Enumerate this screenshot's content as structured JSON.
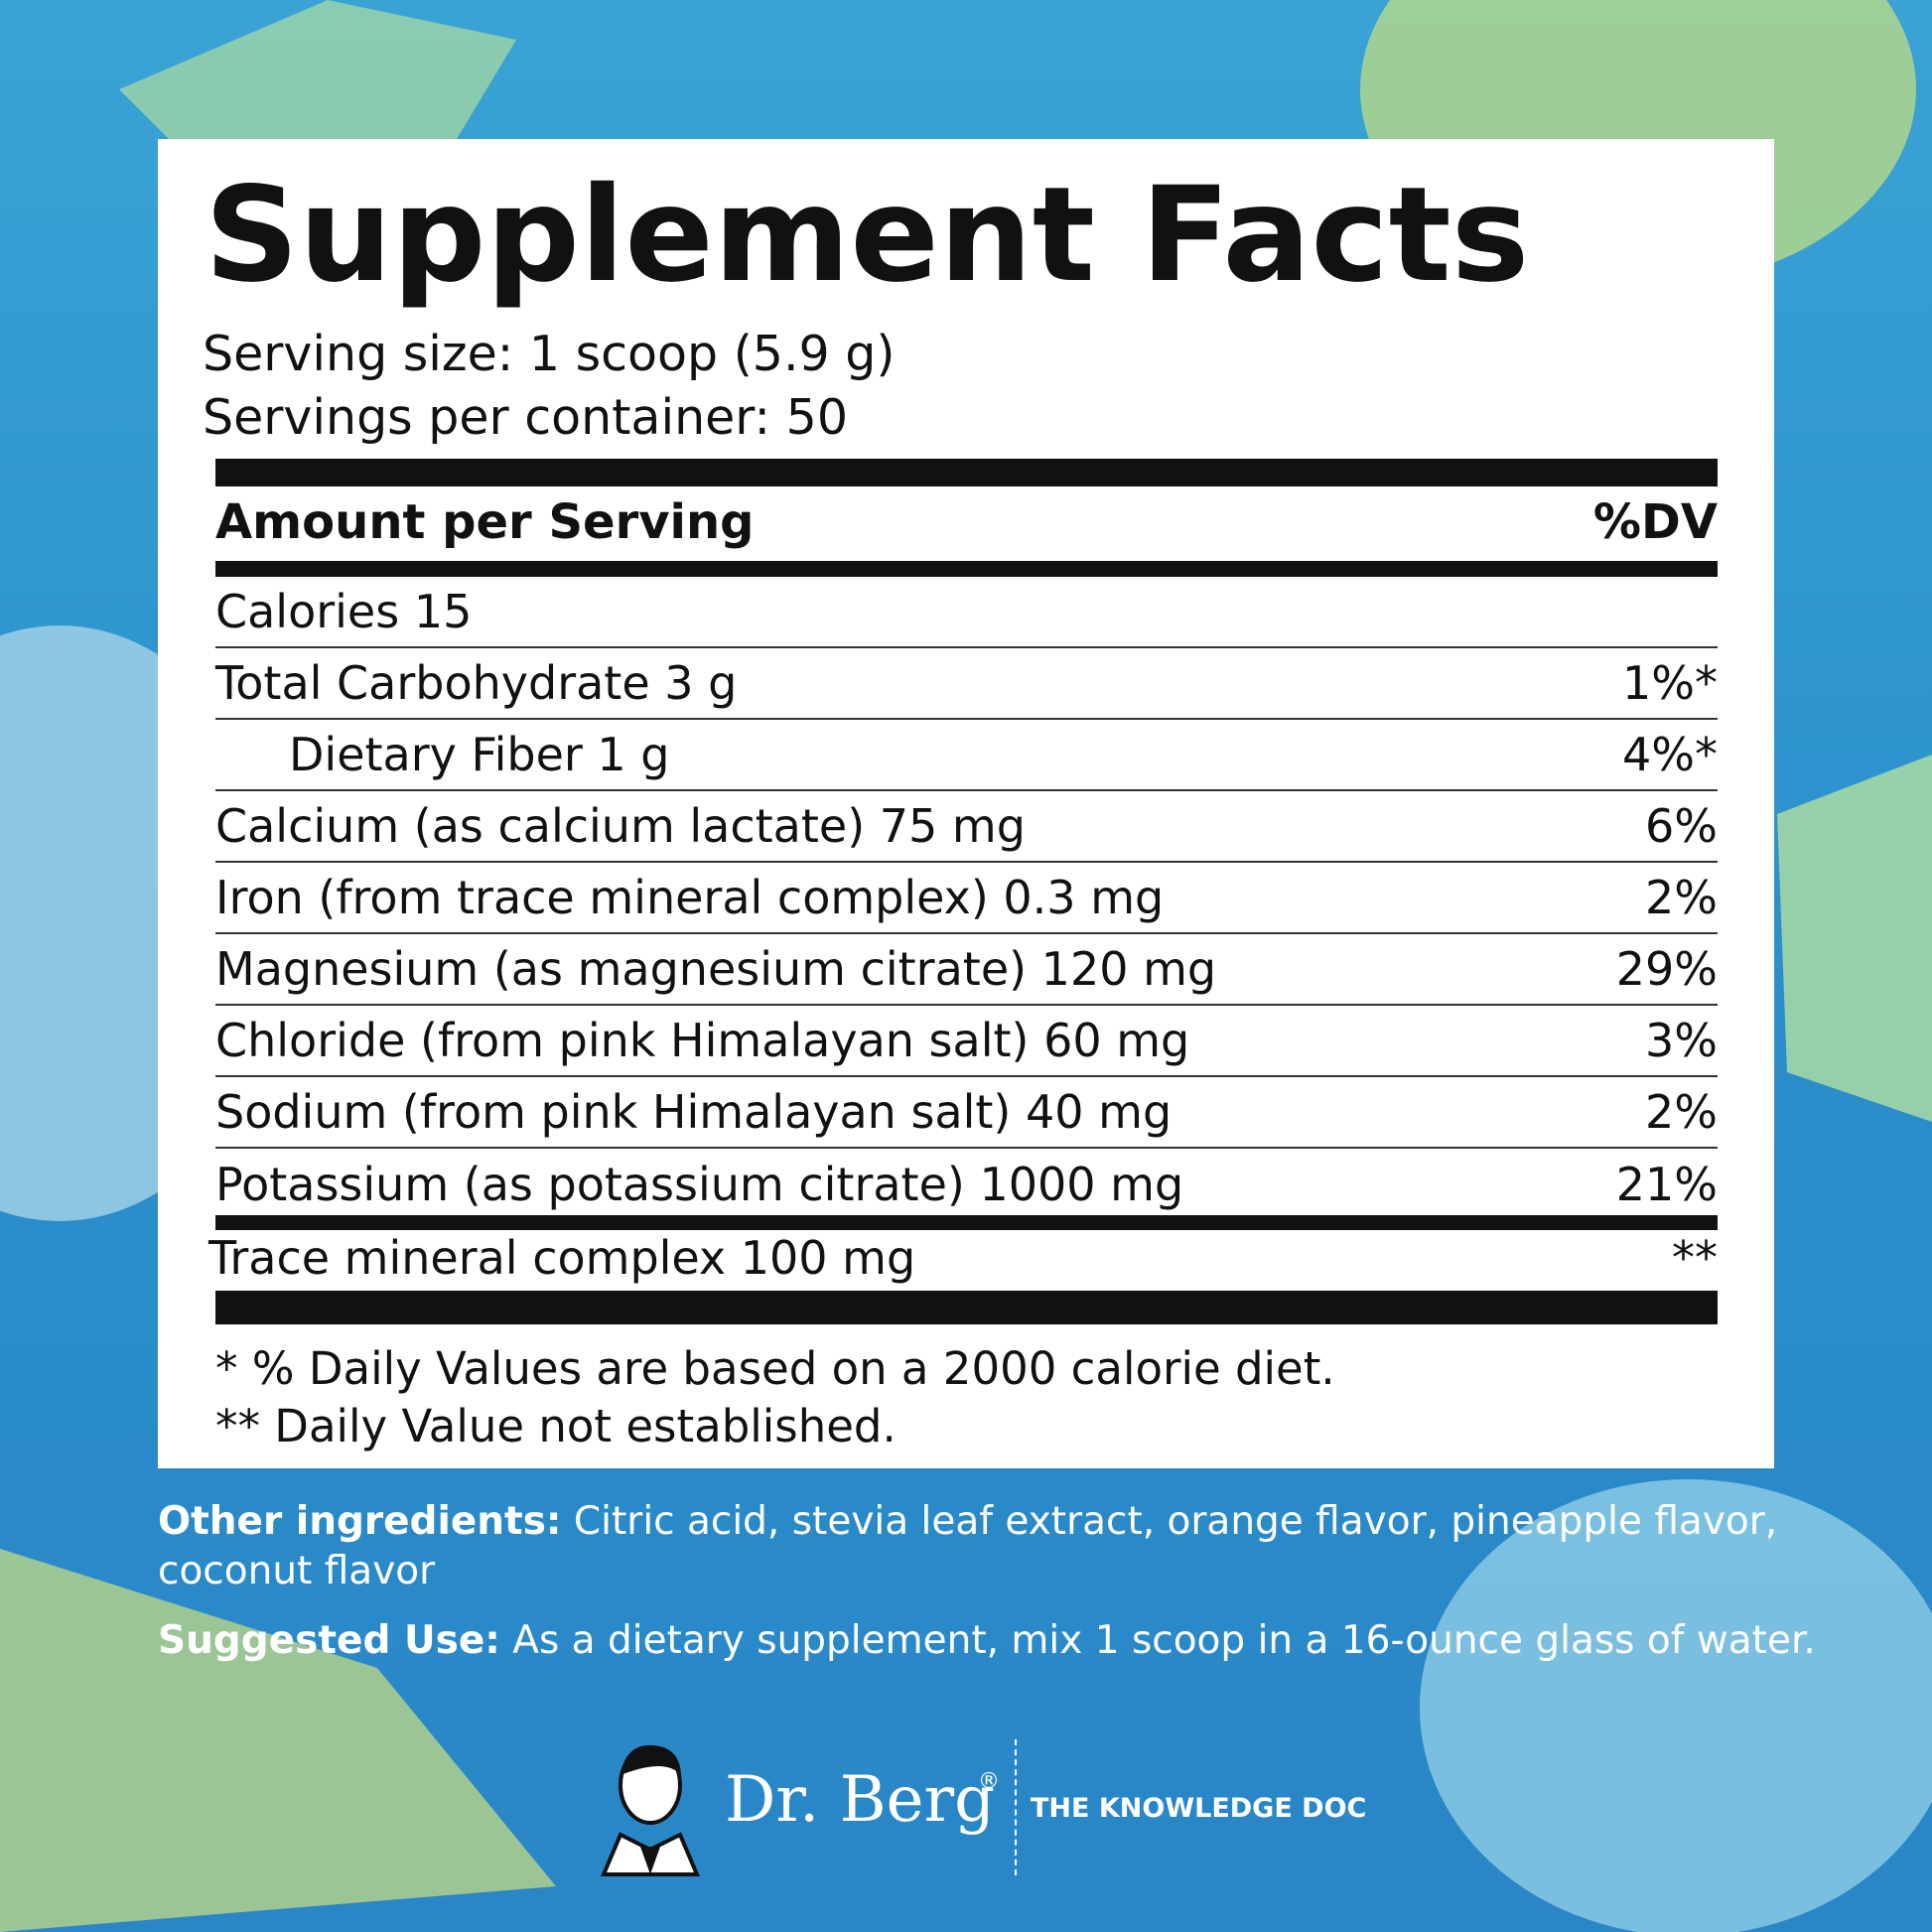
{
  "panel": {
    "title": "Supplement Facts",
    "serving_size": "Serving size: 1 scoop (5.9 g)",
    "servings_per_container": "Servings per container: 50",
    "header": {
      "amount": "Amount per Serving",
      "dv": "%DV"
    },
    "rows": [
      {
        "nutrient": "Calories 15"
      },
      {
        "nutrient": "Total Carbohydrate 3 g",
        "dv": "1%*"
      },
      {
        "nutrient": "Dietary Fiber 1 g",
        "dv": "4%*"
      },
      {
        "nutrient": "Calcium (as calcium lactate) 75 mg",
        "dv": "6%"
      },
      {
        "nutrient": "Iron (from trace mineral complex) 0.3 mg",
        "dv": "2%"
      },
      {
        "nutrient": "Magnesium (as magnesium citrate) 120 mg",
        "dv": "29%"
      },
      {
        "nutrient": "Chloride (from pink Himalayan salt) 60 mg",
        "dv": "3%"
      },
      {
        "nutrient": "Sodium (from pink Himalayan salt) 40 mg",
        "dv": "2%"
      },
      {
        "nutrient": "Potassium (as potassium citrate) 1000 mg",
        "dv": "21%"
      }
    ],
    "trace": {
      "nutrient": "Trace mineral complex 100 mg",
      "dv": "**"
    },
    "footnotes": [
      "* % Daily Values are based on a 2000 calorie diet.",
      "** Daily Value not established."
    ]
  },
  "other_ingredients": {
    "label": "Other ingredients:",
    "text": "Citric acid, stevia leaf extract, orange flavor, pineapple flavor, coconut flavor"
  },
  "suggested_use": {
    "label": "Suggested Use:",
    "text": "As a dietary supplement, mix 1 scoop in a 16-ounce glass of water."
  },
  "brand": {
    "name": "Dr. Berg",
    "mark": "®",
    "tagline": "THE KNOWLEDGE DOC"
  }
}
